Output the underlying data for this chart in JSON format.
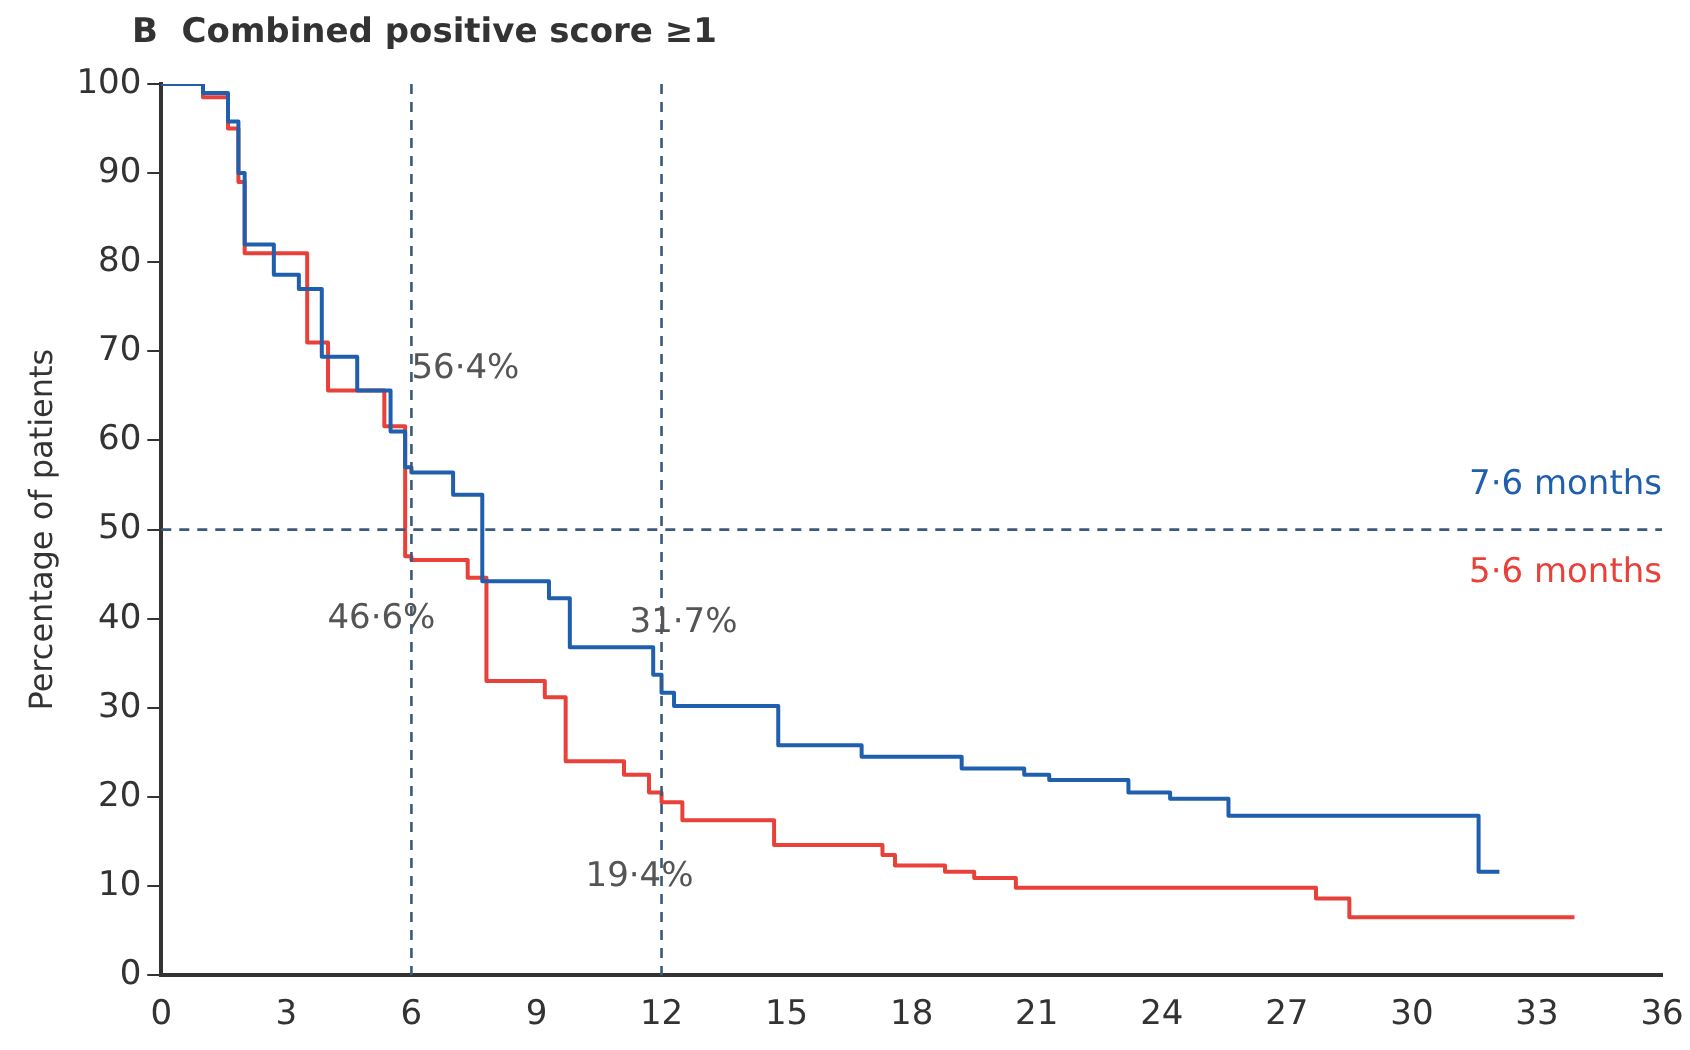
{
  "chart_data": {
    "type": "step",
    "title": "B  Combined positive score ≥1",
    "ylabel": "Percentage of patients",
    "xlim": [
      0,
      36
    ],
    "xticks": [
      0,
      3,
      6,
      9,
      12,
      15,
      18,
      21,
      24,
      27,
      30,
      33,
      36
    ],
    "ylim": [
      0,
      100
    ],
    "yticks": [
      0,
      10,
      20,
      30,
      40,
      50,
      60,
      70,
      80,
      90,
      100
    ],
    "grid": false,
    "legend": false,
    "series": [
      {
        "color": "#1f5fad",
        "x": [
          0,
          1,
          1.6,
          1.85,
          2,
          2.7,
          3.3,
          3.85,
          4.7,
          5.5,
          5.85,
          6,
          7,
          7.7,
          9.3,
          9.8,
          11.8,
          12,
          12.3,
          14.8,
          16.8,
          19.2,
          20.7,
          21.3,
          23.2,
          24.2,
          25.6,
          31.6,
          32.1
        ],
        "values": [
          100,
          99,
          95.8,
          90,
          82,
          78.6,
          77,
          69.4,
          65.6,
          61,
          57,
          56.4,
          53.9,
          44.2,
          42.3,
          36.8,
          33.7,
          31.7,
          30.2,
          25.8,
          24.5,
          23.2,
          22.5,
          21.9,
          20.5,
          19.8,
          17.9,
          11.6,
          11.6
        ]
      },
      {
        "color": "#e8413a",
        "x": [
          0,
          1,
          1.6,
          1.85,
          2,
          3.5,
          4,
          5.35,
          5.85,
          6,
          7.35,
          7.8,
          9.2,
          9.7,
          11.1,
          11.7,
          12,
          12.5,
          14.7,
          17.3,
          17.6,
          18.8,
          19.5,
          20.5,
          27.7,
          28.5,
          33.9
        ],
        "values": [
          100,
          98.5,
          95,
          89,
          81,
          71,
          65.6,
          61.6,
          47,
          46.6,
          44.6,
          33,
          31.2,
          24,
          22.5,
          20.5,
          19.4,
          17.4,
          14.6,
          13.5,
          12.3,
          11.6,
          10.9,
          9.8,
          8.6,
          6.5,
          6.5
        ]
      }
    ],
    "ref_lines": [
      {
        "axis": "x",
        "value": 6,
        "color": "#3b5a7a",
        "line_style": "dashed"
      },
      {
        "axis": "x",
        "value": 12,
        "color": "#3b5a7a",
        "line_style": "dashed"
      },
      {
        "axis": "y",
        "value": 50,
        "color": "#3b5a7a",
        "line_style": "dashed"
      }
    ],
    "annotations": [
      "56·4%",
      "46·6%",
      "31·7%",
      "19·4%",
      "7·6 months",
      "5·6 months"
    ]
  }
}
